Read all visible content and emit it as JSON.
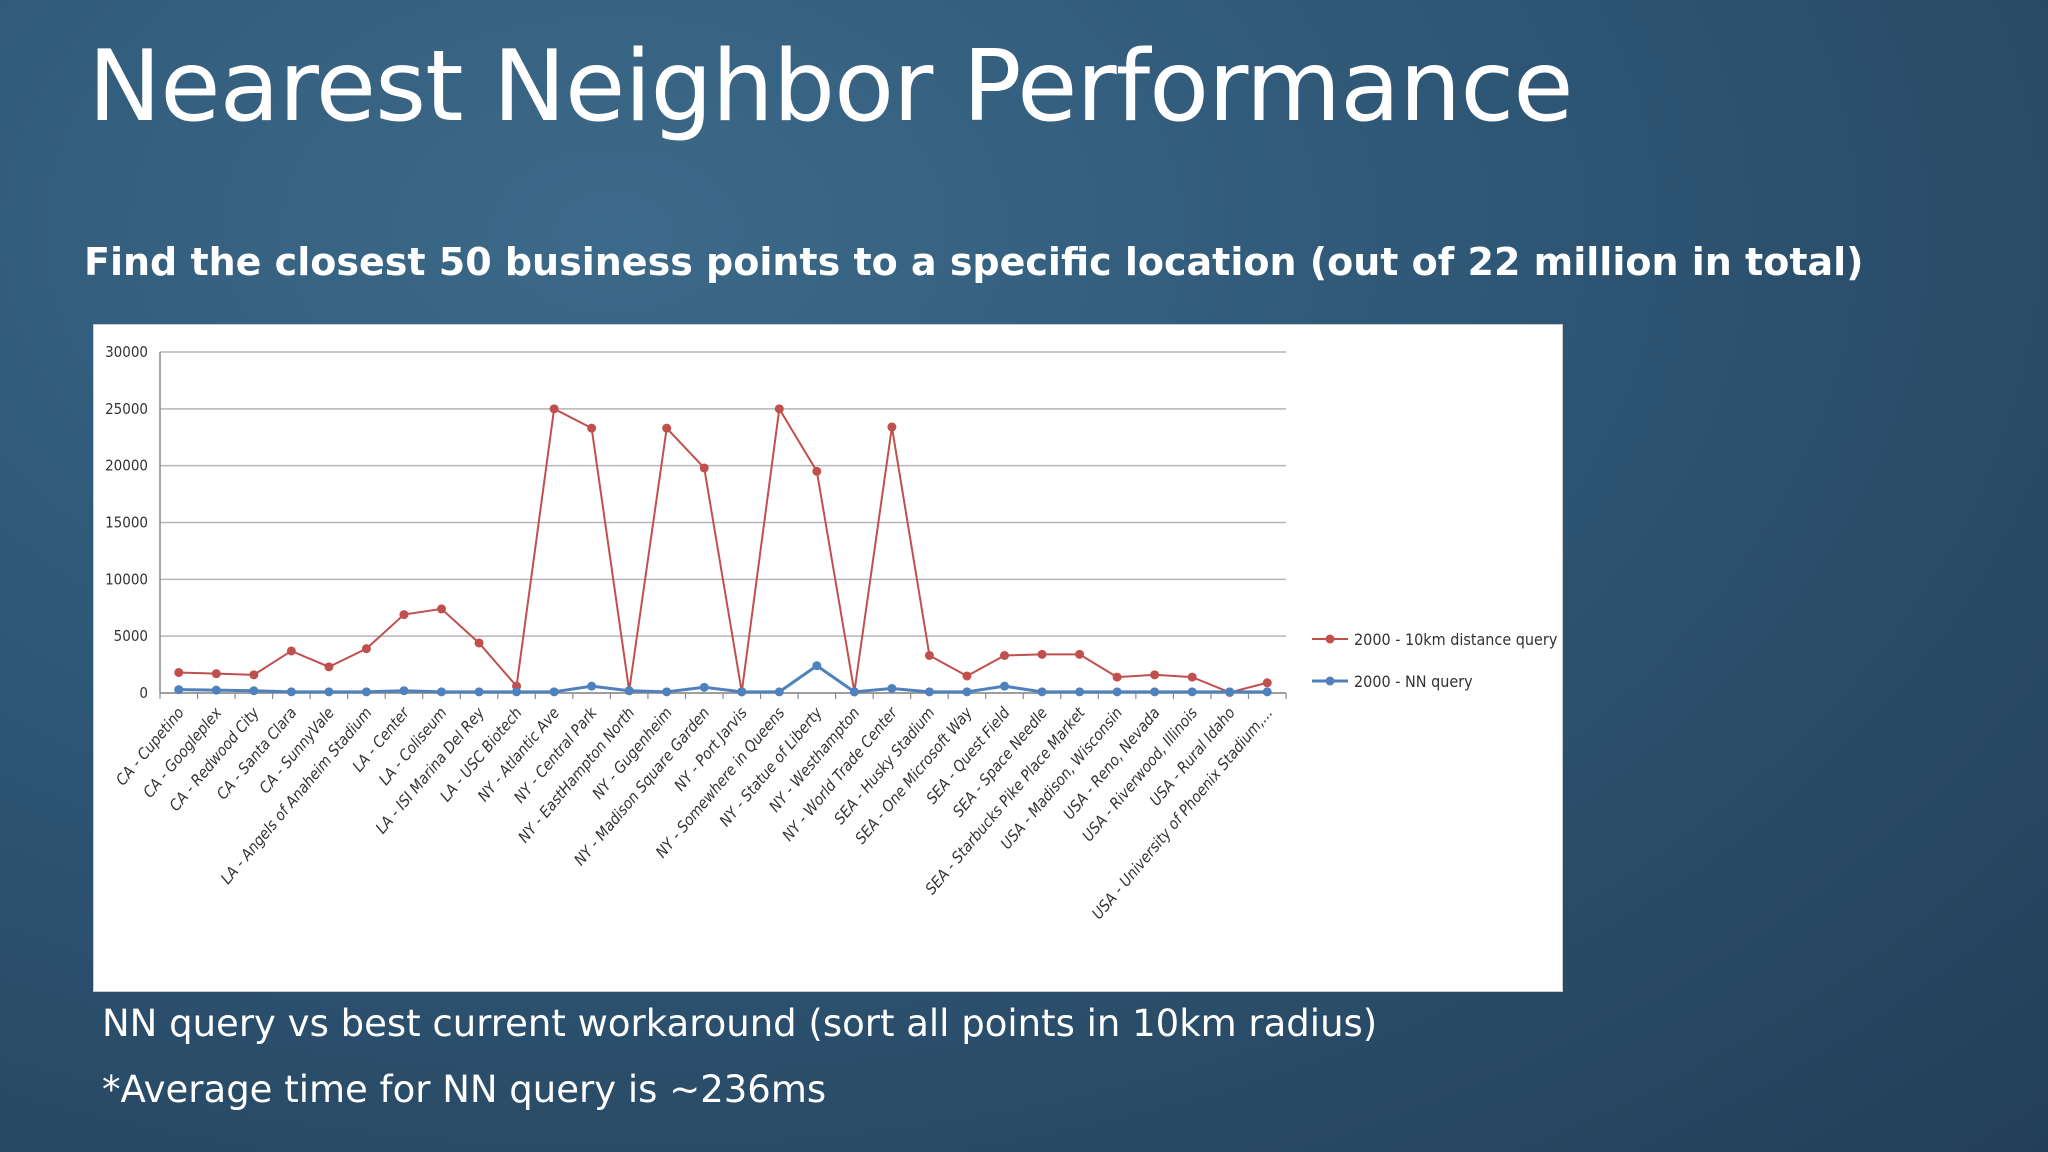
{
  "slide": {
    "title": "Nearest Neighbor Performance",
    "subtitle": "Find the closest 50 business points to a specific location (out of 22 million in total)",
    "note_1": "NN query vs best current workaround (sort all points in 10km radius)",
    "note_2": "*Average time for NN query is ~236ms"
  },
  "chart_data": {
    "type": "line",
    "title": "",
    "xlabel": "",
    "ylabel": "",
    "ylim": [
      0,
      30000
    ],
    "yticks": [
      0,
      5000,
      10000,
      15000,
      20000,
      25000,
      30000
    ],
    "grid": true,
    "legend_position": "right",
    "categories": [
      "CA - Cupetino",
      "CA - Googleplex",
      "CA - Redwood City",
      "CA - Santa Clara",
      "CA - SunnyVale",
      "LA - Angels of Anaheim Stadium",
      "LA - Center",
      "LA - Coliseum",
      "LA - ISI Marina Del Rey",
      "LA - USC Biotech",
      "NY - Atlantic Ave",
      "NY - Central Park",
      "NY - EastHampton North",
      "NY - Gugenheim",
      "NY - Madison Square Garden",
      "NY - Port Jarvis",
      "NY - Somewhere in Queens",
      "NY - Statue of Liberty",
      "NY - Westhampton",
      "NY - World Trade Center",
      "SEA - Husky Stadium",
      "SEA - One Microsoft Way",
      "SEA - Quest Field",
      "SEA - Space Needle",
      "SEA - Starbucks Pike Place Market",
      "USA - Madison, Wisconsin",
      "USA - Reno, Nevada",
      "USA - Riverwood, Illinois",
      "USA - Rural Idaho",
      "USA - University of Phoenix Stadium,..."
    ],
    "series": [
      {
        "name": "2000 - 10km distance query",
        "color": "#c0504d",
        "values": [
          1800,
          1700,
          1600,
          3700,
          2300,
          3900,
          6900,
          7400,
          4400,
          600,
          25000,
          23300,
          200,
          23300,
          19800,
          100,
          25000,
          19500,
          100,
          23400,
          3300,
          1500,
          3300,
          3400,
          3400,
          1400,
          1600,
          1400,
          50,
          900
        ]
      },
      {
        "name": "2000 - NN query",
        "color": "#4f81bd",
        "values": [
          300,
          250,
          200,
          100,
          100,
          100,
          200,
          100,
          100,
          100,
          100,
          600,
          200,
          100,
          500,
          100,
          100,
          2400,
          100,
          400,
          100,
          100,
          600,
          100,
          100,
          100,
          100,
          100,
          100,
          100
        ]
      }
    ]
  }
}
